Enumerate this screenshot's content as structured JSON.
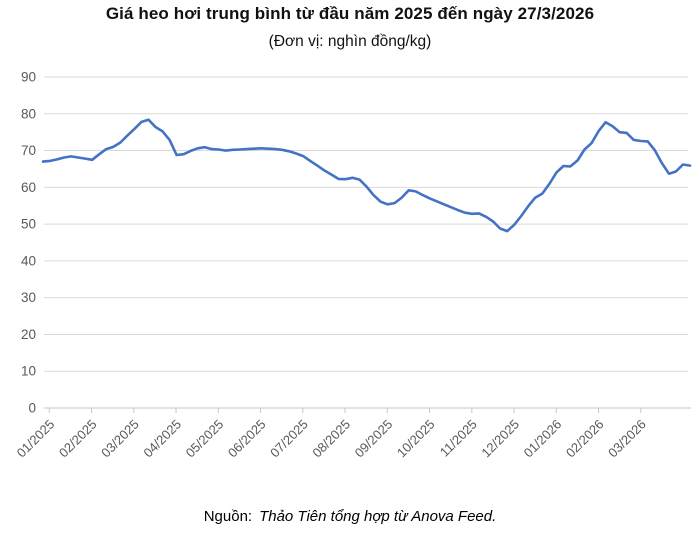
{
  "title": "Giá heo hơi trung bình từ đầu năm 2025 đến ngày 27/3/2026",
  "subtitle": "(Đơn vị: nghìn đồng/kg)",
  "source": {
    "label": "Nguồn:",
    "text": "Thảo Tiên tổng hợp từ Anova Feed."
  },
  "colors": {
    "line": "#4472C4",
    "gridline": "#D9D9D9",
    "axis": "#C6C6C6",
    "tick_label": "#595959",
    "title_text": "#111111"
  },
  "chart_data": {
    "type": "line",
    "title": "Giá heo hơi trung bình từ đầu năm 2025 đến ngày 27/3/2026",
    "unit": "nghìn đồng/kg",
    "xlabel": "",
    "ylabel": "",
    "ylim": [
      0,
      90
    ],
    "y_ticks": [
      0,
      10,
      20,
      30,
      40,
      50,
      60,
      70,
      80,
      90
    ],
    "x_tick_labels": [
      "01/2025",
      "02/2025",
      "03/2025",
      "04/2025",
      "05/2025",
      "06/2025",
      "07/2025",
      "08/2025",
      "09/2025",
      "10/2025",
      "11/2025",
      "12/2025",
      "01/2026",
      "02/2026",
      "03/2026"
    ],
    "grid": "horizontal",
    "legend": "none",
    "series": [
      {
        "name": "Giá heo hơi trung bình",
        "color": "#4472C4",
        "values": [
          67.0,
          67.2,
          67.6,
          68.1,
          68.4,
          68.1,
          67.8,
          67.5,
          69.0,
          70.4,
          71.0,
          72.2,
          74.1,
          75.9,
          77.8,
          78.4,
          76.4,
          75.2,
          72.9,
          68.8,
          69.0,
          69.9,
          70.6,
          70.9,
          70.4,
          70.3,
          70.0,
          70.2,
          70.3,
          70.4,
          70.5,
          70.6,
          70.5,
          70.4,
          70.2,
          69.8,
          69.2,
          68.5,
          67.2,
          65.9,
          64.6,
          63.5,
          62.3,
          62.2,
          62.6,
          62.1,
          60.2,
          57.9,
          56.1,
          55.4,
          55.7,
          57.2,
          59.2,
          58.9,
          57.9,
          57.0,
          56.2,
          55.4,
          54.6,
          53.8,
          53.1,
          52.8,
          52.9,
          52.0,
          50.7,
          48.8,
          48.1,
          49.8,
          52.2,
          54.9,
          57.2,
          58.3,
          60.9,
          64.0,
          65.8,
          65.7,
          67.3,
          70.3,
          72.0,
          75.3,
          77.7,
          76.6,
          75.0,
          74.8,
          72.9,
          72.6,
          72.5,
          70.1,
          66.6,
          63.7,
          64.3,
          66.2,
          65.9
        ]
      }
    ]
  }
}
